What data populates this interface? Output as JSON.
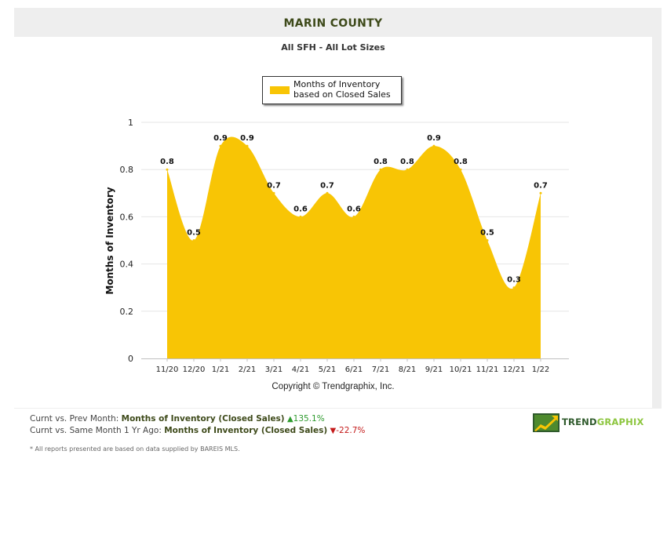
{
  "header": {
    "title": "MARIN COUNTY",
    "subtitle": "All SFH - All Lot Sizes"
  },
  "legend": {
    "label": "Months of Inventory based on Closed Sales"
  },
  "copyright": "Copyright © Trendgraphix, Inc.",
  "stats": {
    "row1_prefix": "Curnt vs. Prev Month:",
    "row1_metric": "Months of Inventory (Closed Sales)",
    "row1_change": "135.1%",
    "row2_prefix": "Curnt vs. Same Month 1 Yr Ago:",
    "row2_metric": "Months of Inventory (Closed Sales)",
    "row2_change": "-22.7%"
  },
  "footnote": "* All reports presented are based on data supplied by BAREIS MLS.",
  "brand": {
    "part1": "TREND",
    "part2": "GRAPHIX"
  },
  "colors": {
    "fill": "#f8c505",
    "up": "#2d9a2d",
    "down": "#c41a1a"
  },
  "chart_data": {
    "type": "area",
    "categories": [
      "11/20",
      "12/20",
      "1/21",
      "2/21",
      "3/21",
      "4/21",
      "5/21",
      "6/21",
      "7/21",
      "8/21",
      "9/21",
      "10/21",
      "11/21",
      "12/21",
      "1/22"
    ],
    "series": [
      {
        "name": "Months of Inventory based on Closed Sales",
        "values": [
          0.8,
          0.5,
          0.9,
          0.9,
          0.7,
          0.6,
          0.7,
          0.6,
          0.8,
          0.8,
          0.9,
          0.8,
          0.5,
          0.3,
          0.7
        ]
      }
    ],
    "ylabel": "Months of Inventory",
    "ylim": [
      0,
      1
    ],
    "yticks": [
      "0",
      "0.2",
      "0.4",
      "0.6",
      "0.8",
      "1"
    ],
    "grid": true,
    "legend": "top-center"
  }
}
